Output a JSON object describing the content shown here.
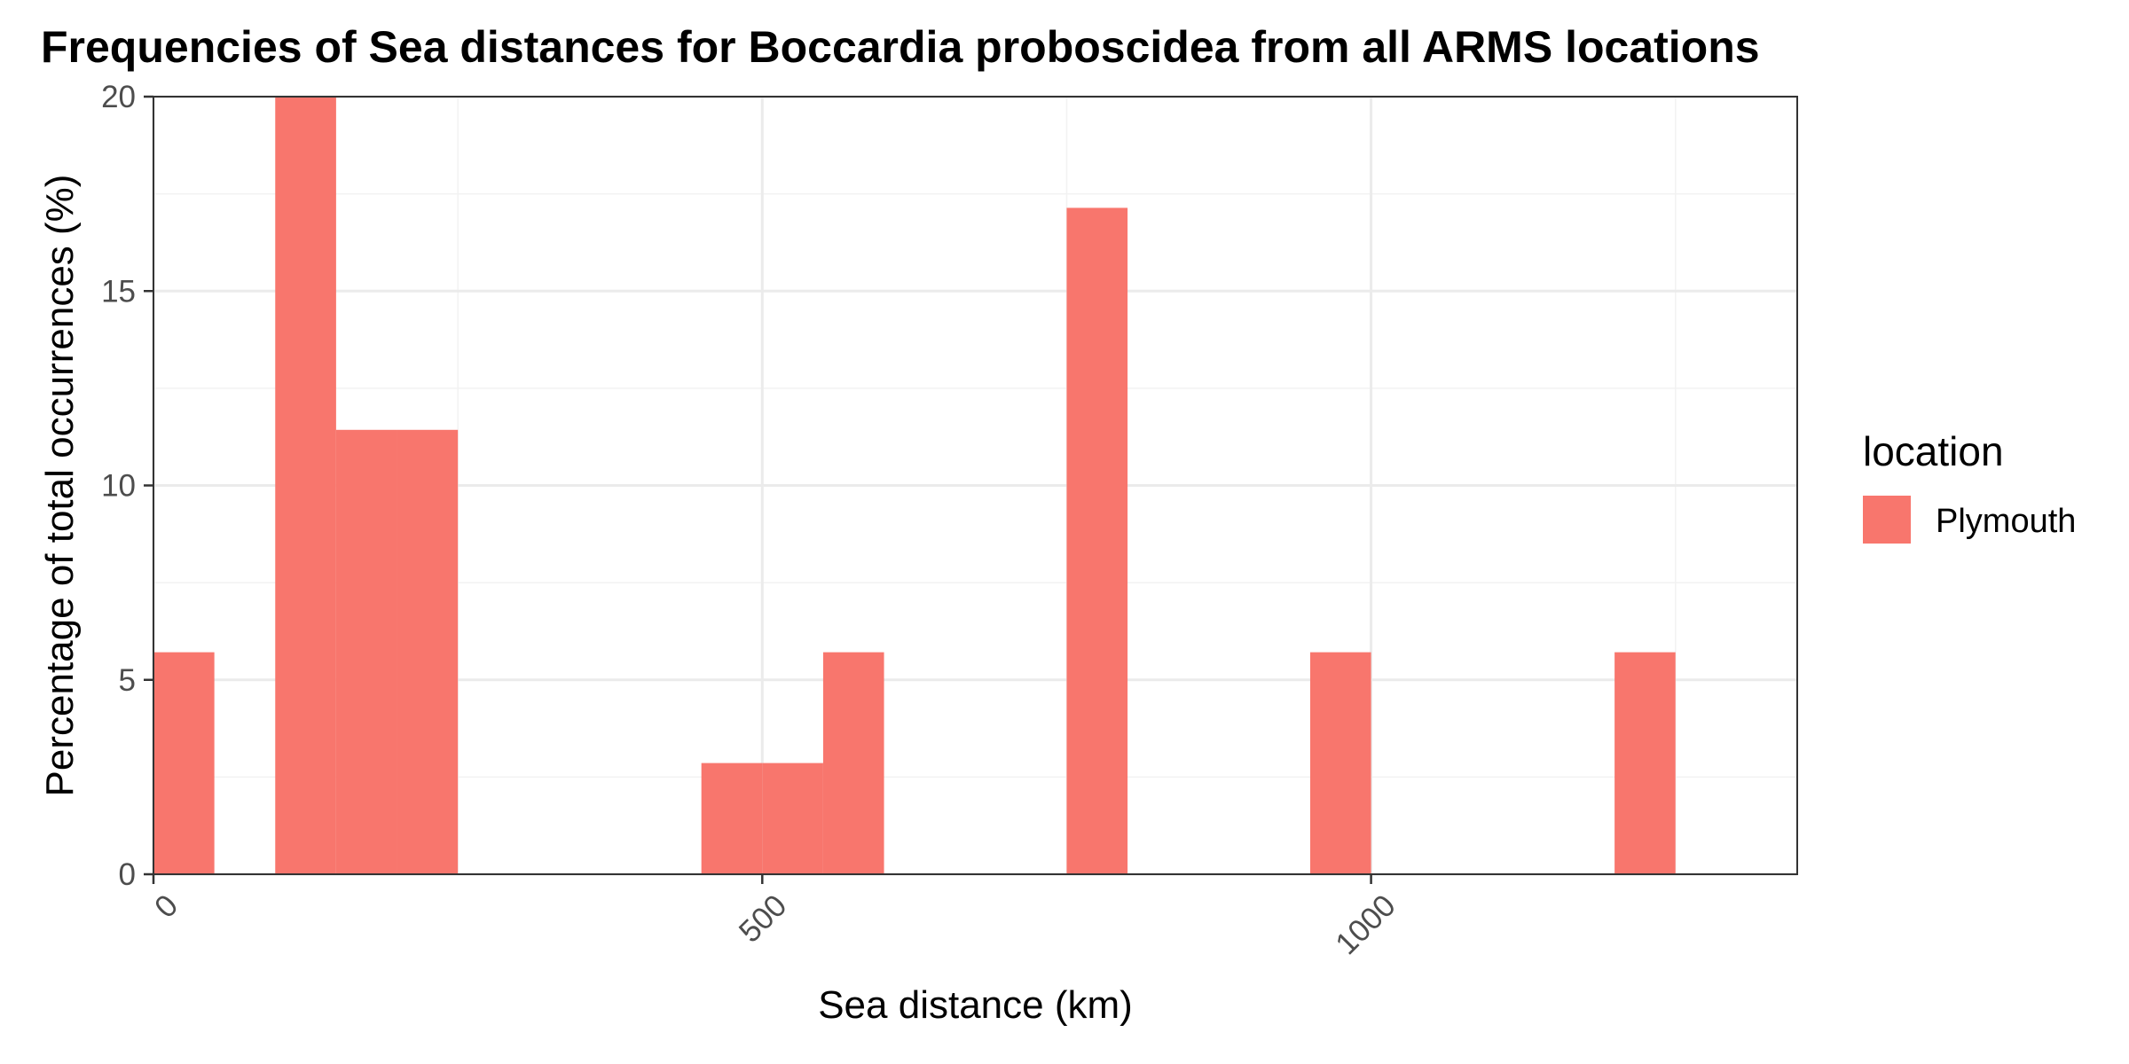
{
  "chart_data": {
    "type": "bar",
    "title": "Frequencies of Sea distances for Boccardia proboscidea from all ARMS locations",
    "xlabel": "Sea distance (km)",
    "ylabel": "Percentage of total occurrences (%)",
    "xlim": [
      0,
      1350
    ],
    "ylim": [
      0,
      20
    ],
    "x_ticks": [
      0,
      500,
      1000
    ],
    "x_tick_labels": [
      "0",
      "500",
      "1000"
    ],
    "y_ticks": [
      0,
      5,
      10,
      15,
      20
    ],
    "y_tick_labels": [
      "0",
      "5",
      "10",
      "15",
      "20"
    ],
    "bin_width": 50,
    "grid": true,
    "legend": {
      "title": "location",
      "placement": "right",
      "entries": [
        {
          "label": "Plymouth",
          "color": "#F8766D"
        }
      ]
    },
    "series": [
      {
        "name": "Plymouth",
        "color": "#F8766D",
        "bins": [
          {
            "x_start": 0,
            "x_end": 50,
            "value": 5.71
          },
          {
            "x_start": 100,
            "x_end": 150,
            "value": 20.0
          },
          {
            "x_start": 150,
            "x_end": 200,
            "value": 11.43
          },
          {
            "x_start": 200,
            "x_end": 250,
            "value": 11.43
          },
          {
            "x_start": 450,
            "x_end": 500,
            "value": 2.86
          },
          {
            "x_start": 500,
            "x_end": 550,
            "value": 2.86
          },
          {
            "x_start": 550,
            "x_end": 600,
            "value": 5.71
          },
          {
            "x_start": 750,
            "x_end": 800,
            "value": 17.14
          },
          {
            "x_start": 950,
            "x_end": 1000,
            "value": 5.71
          },
          {
            "x_start": 1200,
            "x_end": 1250,
            "value": 5.71
          }
        ]
      }
    ]
  }
}
